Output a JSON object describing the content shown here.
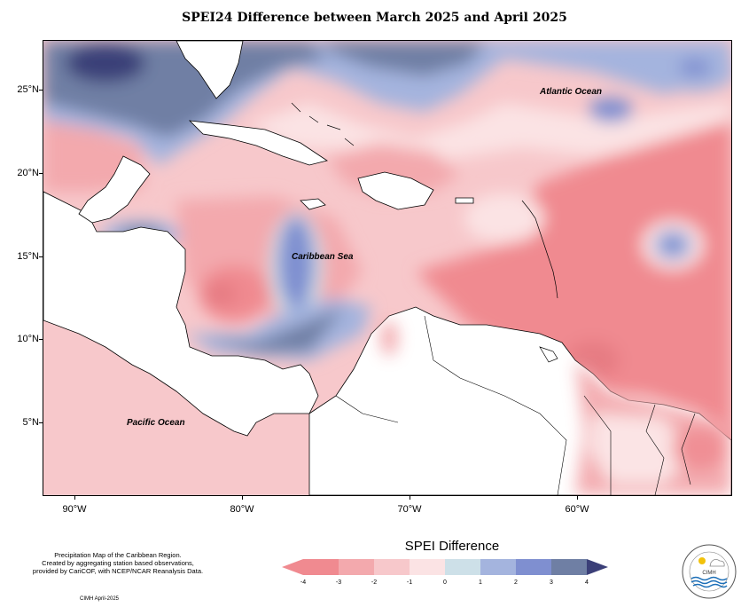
{
  "title": "SPEI24 Difference between March 2025 and April 2025",
  "labels": {
    "atlantic": "Atlantic Ocean",
    "caribbean": "Caribbean Sea",
    "pacific": "Pacific Ocean"
  },
  "axes": {
    "lat_labels": [
      "25°N",
      "20°N",
      "15°N",
      "10°N",
      "5°N"
    ],
    "lon_labels": [
      "90°W",
      "80°W",
      "70°W",
      "60°W"
    ]
  },
  "legend": {
    "title": "SPEI Difference",
    "ticks": [
      "-4",
      "-3",
      "-2",
      "-1",
      "0",
      "1",
      "2",
      "3",
      "4"
    ],
    "colors": [
      "#f08a90",
      "#f3a9ad",
      "#f7c8cb",
      "#fbe3e4",
      "#cde0e8",
      "#a4b4de",
      "#7f8fd0",
      "#6f7fa4",
      "#3b3f78"
    ]
  },
  "notes": {
    "line1": "Precipitation Map of the Caribbean Region.",
    "line2": "Created by aggregating station based observations,",
    "line3": "provided by CariCOF, with NCEP/NCAR Reanalysis Data.",
    "credit": "CIMH April-2025"
  },
  "logo": {
    "name": "CIMH"
  }
}
